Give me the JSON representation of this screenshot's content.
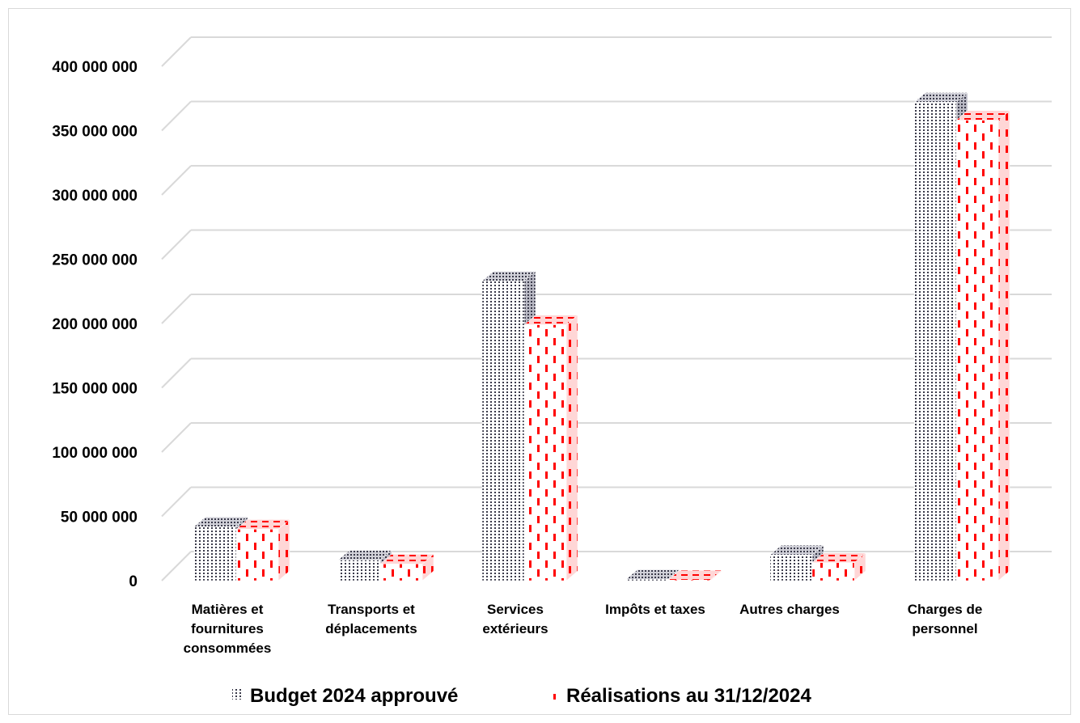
{
  "chart_data": {
    "type": "bar",
    "style": "3d-clustered",
    "categories": [
      [
        "Matières et",
        "fournitures",
        "consommées"
      ],
      [
        "Transports et",
        "déplacements"
      ],
      [
        "Services",
        "extérieurs"
      ],
      [
        "Impôts et taxes"
      ],
      [
        "Autres charges"
      ],
      [
        "Charges de",
        "personnel"
      ]
    ],
    "series": [
      {
        "name": "Budget 2024 approuvé",
        "pattern": "dotted-grey",
        "color": "#3a3a4a",
        "values": [
          42000000,
          16000000,
          233000000,
          1000000,
          20000000,
          372000000
        ]
      },
      {
        "name": "Réalisations au 31/12/2024",
        "pattern": "dashed-red",
        "color": "#ff0000",
        "values": [
          40000000,
          13000000,
          199000000,
          500000,
          14000000,
          358000000
        ]
      }
    ],
    "ylim": [
      0,
      400000000
    ],
    "yticks": [
      "0",
      "50 000 000",
      "100 000 000",
      "150 000 000",
      "200 000 000",
      "250 000 000",
      "300 000 000",
      "350 000 000",
      "400 000 000"
    ],
    "grid": true,
    "legend": "bottom"
  }
}
